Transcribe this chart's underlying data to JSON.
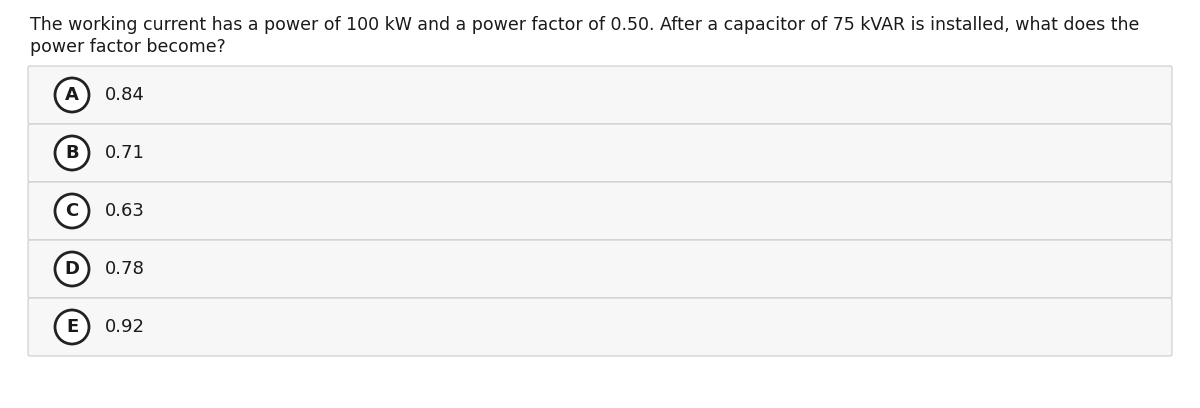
{
  "question_line1": "The working current has a power of 100 kW and a power factor of 0.50. After a capacitor of 75 kVAR is installed, what does the",
  "question_line2": "power factor become?",
  "options": [
    {
      "label": "A",
      "value": "0.84"
    },
    {
      "label": "B",
      "value": "0.71"
    },
    {
      "label": "C",
      "value": "0.63"
    },
    {
      "label": "D",
      "value": "0.78"
    },
    {
      "label": "E",
      "value": "0.92"
    }
  ],
  "bg_color": "#ffffff",
  "option_bg_color": "#f7f7f7",
  "option_border_color": "#cccccc",
  "text_color": "#1a1a1a",
  "circle_edge_color": "#222222",
  "circle_face_color": "#ffffff",
  "question_fontsize": 12.5,
  "option_fontsize": 13.0,
  "label_fontsize": 13.0
}
